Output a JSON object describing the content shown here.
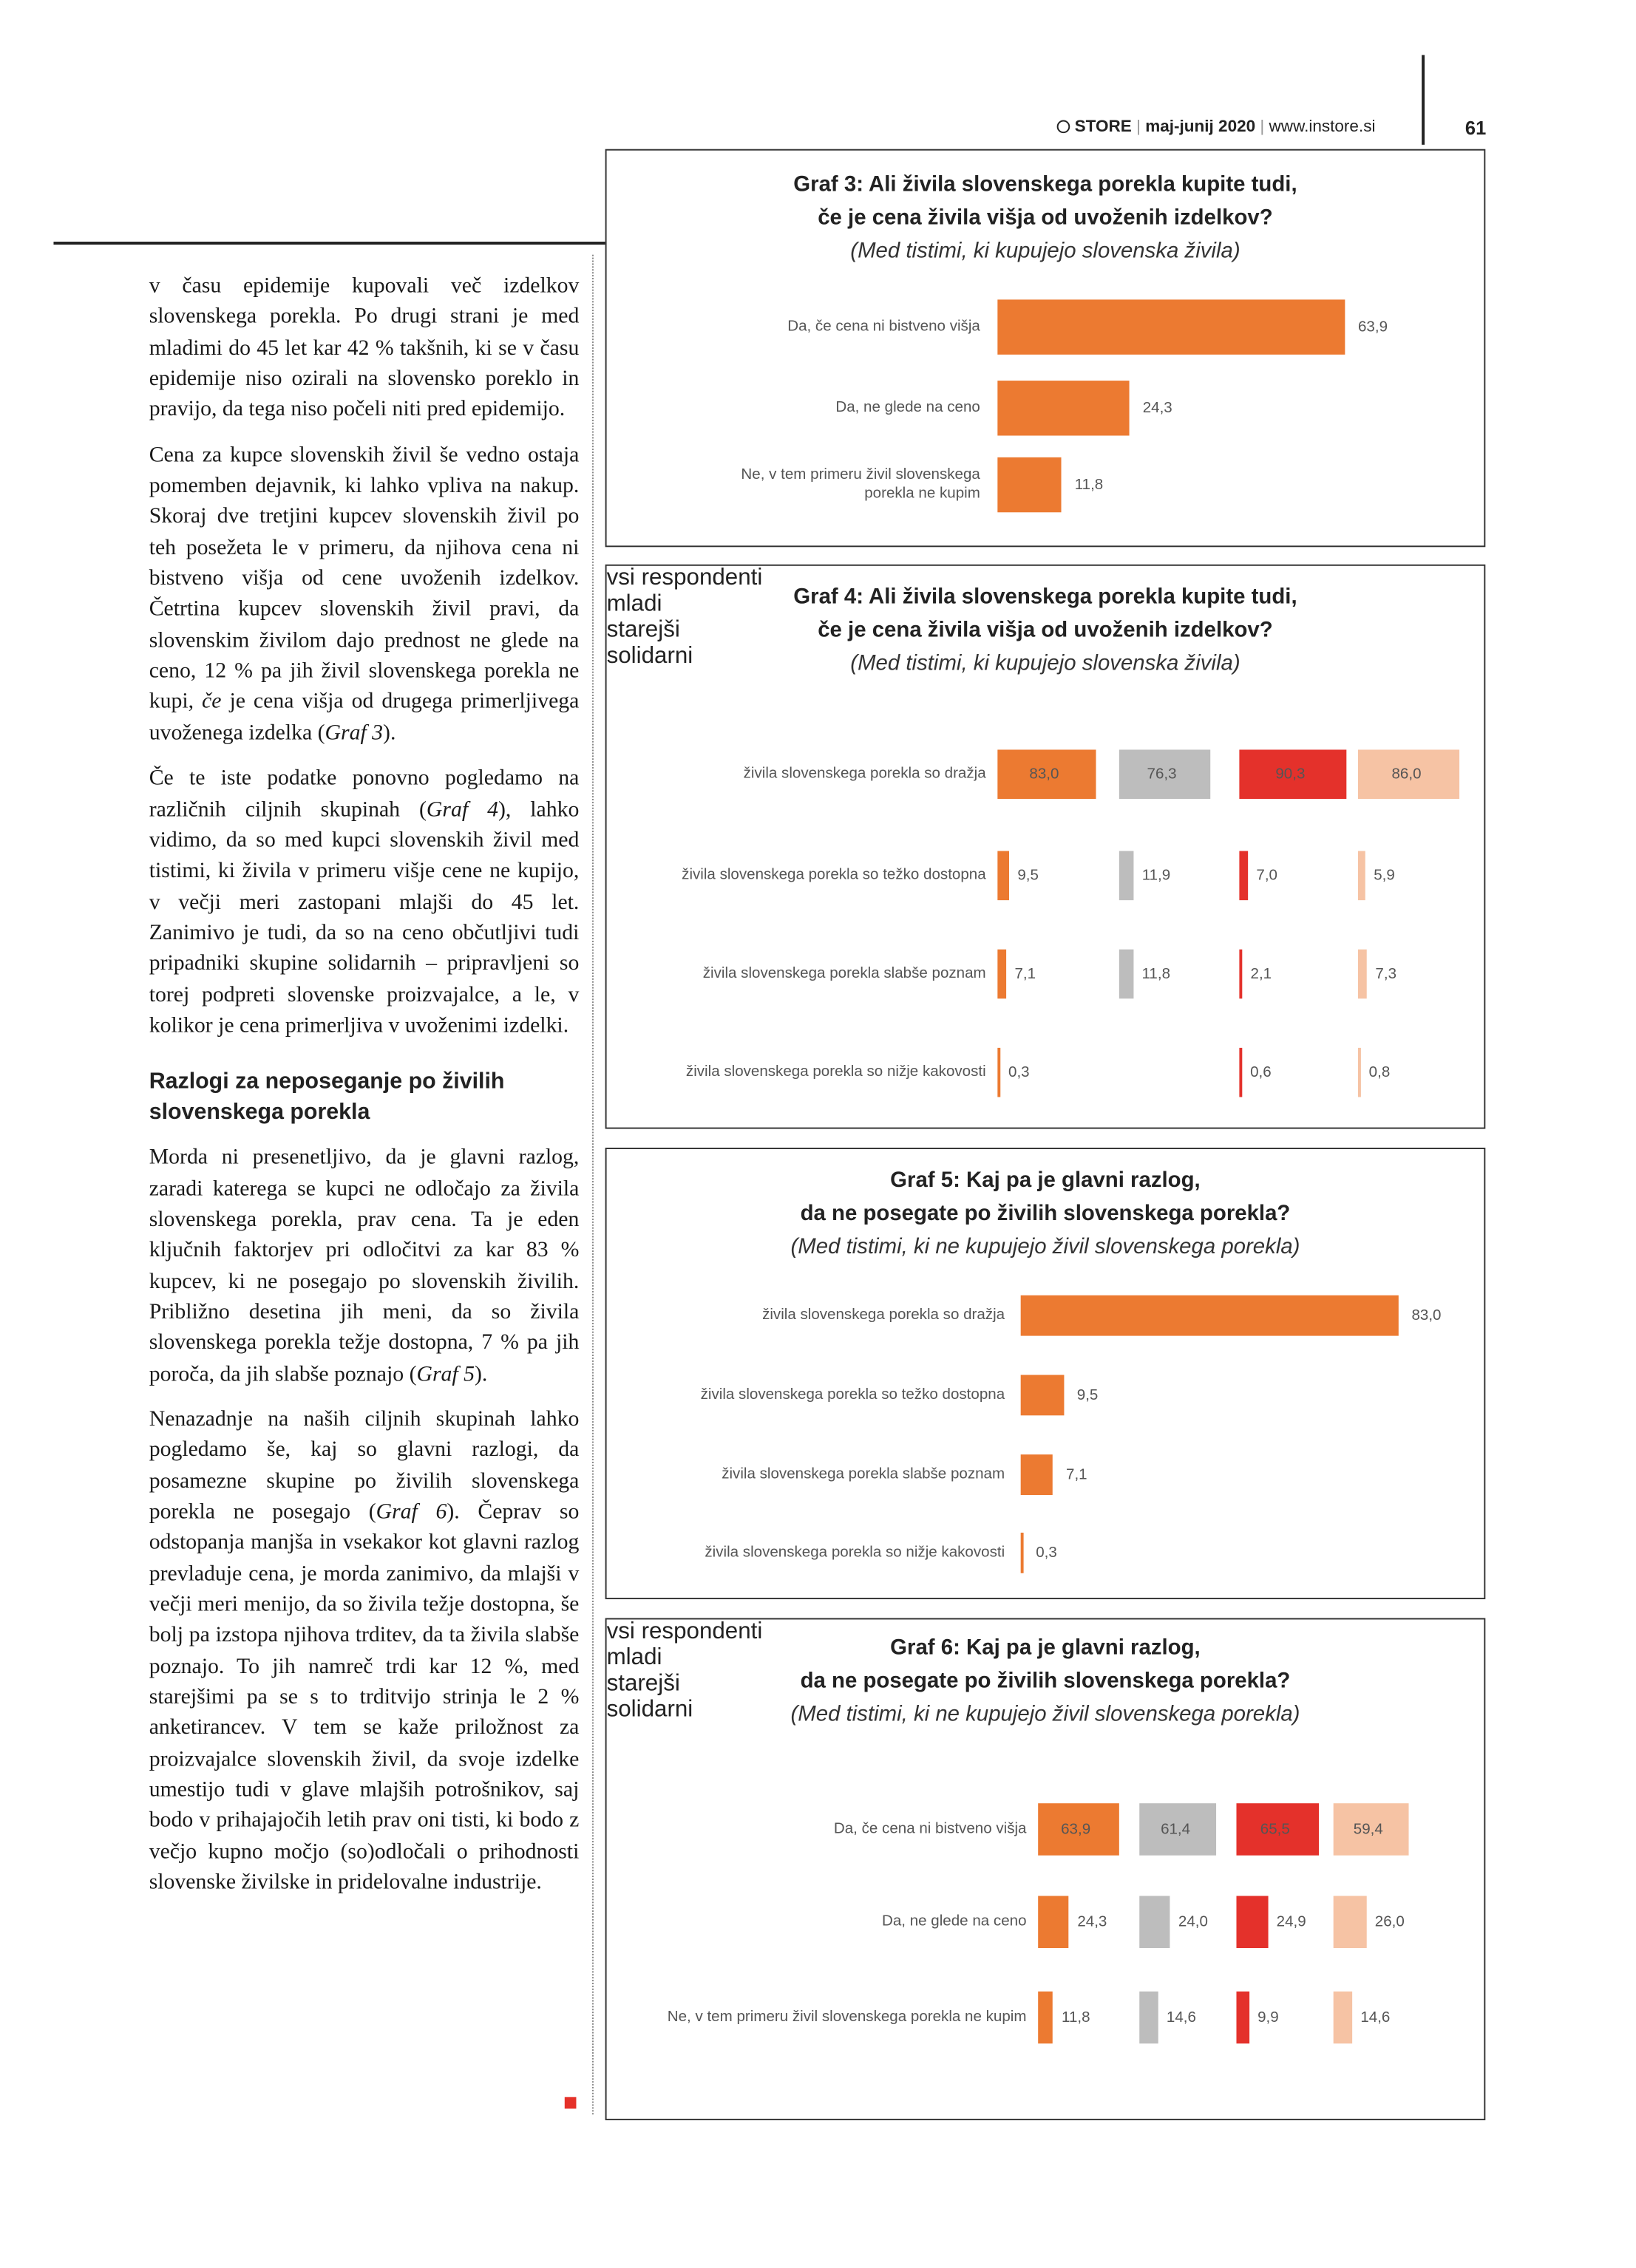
{
  "header": {
    "magazine": "STORE",
    "issue": "maj-junij 2020",
    "website": "www.instore.si",
    "page_number": "61"
  },
  "article": {
    "paragraphs": [
      [
        "v času epidemije kupovali več izdelkov slovenskega porekla. Po drugi strani je med mladimi do 45 let kar 42 % takšnih, ki se v času epidemije niso ozirali na slovensko poreklo in pravijo, da tega niso počeli niti pred epidemijo."
      ],
      [
        "Cena za kupce slovenskih živil še vedno ostaja pomemben dejavnik, ki lahko vpliva na nakup. Skoraj dve tretjini kupcev slovenskih živil po teh posežeta le v primeru, da njihova cena ni bistveno višja od cene uvoženih izdelkov. Četrtina kupcev slovenskih živil pravi, da slovenskim živilom dajo prednost ne glede na ceno, 12 % pa jih živil slovenskega porekla ne kupi, ",
        "če",
        " je cena višja od drugega primerljivega uvoženega izdelka (",
        "Graf 3",
        ")."
      ],
      [
        "Če te iste podatke ponovno pogledamo na različnih ciljnih skupinah (",
        "Graf 4",
        "), lahko vidimo, da so med kupci slovenskih živil med tistimi, ki živila v primeru višje cene ne kupijo, v večji meri zastopani mlajši do 45 let. Zanimivo je tudi, da so na ceno občutljivi tudi pripadniki skupine solidarnih – pripravljeni so torej podpreti slovenske proizvajalce, a le, v kolikor je cena primerljiva v uvoženimi izdelki."
      ]
    ],
    "heading": "Razlogi za neposeganje po živilih slovenskega porekla",
    "paragraphs_after": [
      [
        "Morda ni presenetljivo, da je glavni razlog, zaradi katerega se kupci ne odločajo za živila slovenskega porekla, prav cena. Ta je eden ključnih faktorjev pri odločitvi za kar 83 % kupcev, ki ne posegajo po slovenskih živilih. Približno desetina jih meni, da so živila slovenskega porekla težje dostopna, 7 % pa jih poroča, da jih slabše poznajo (",
        "Graf 5",
        ")."
      ],
      [
        "Nenazadnje na naših ciljnih skupinah lahko pogledamo še, kaj so glavni razlogi, da posamezne skupine po živilih slovenskega porekla ne posegajo (",
        "Graf 6",
        "). Čeprav so odstopanja manjša in vsekakor kot glavni razlog prevladuje cena, je morda zanimivo, da mlajši v večji meri menijo, da so živila težje dostopna, še bolj pa izstopa njihova trditev, da ta živila slabše poznajo. To jih namreč trdi kar 12 %, med starejšimi pa se s to trditvijo strinja le 2 % anketirancev. V tem se kaže priložnost za proizvajalce slovenskih živil, da svoje izdelke umestijo tudi v glave mlajših potrošnikov, saj bodo v prihajajočih letih prav oni tisti, ki bodo z večjo kupno močjo (so)odločali o prihodnosti slovenske živilske in pridelovalne industrije."
      ]
    ]
  },
  "chart_data": [
    {
      "type": "bar",
      "orientation": "horizontal",
      "title": [
        "Graf 3: Ali živila slovenskega porekla kupite tudi,",
        "če je cena živila višja od uvoženih izdelkov?"
      ],
      "subtitle": "(Med tistimi, ki kupujejo slovenska živila)",
      "categories": [
        "Da, če cena ni bistveno višja",
        "Da, ne glede na ceno",
        "Ne, v tem primeru živil slovenskega porekla ne kupim"
      ],
      "values": [
        63.9,
        24.3,
        11.8
      ],
      "value_labels": [
        "63,9",
        "24,3",
        "11,8"
      ],
      "color": "#ec7a31"
    },
    {
      "type": "bar",
      "orientation": "horizontal",
      "title": [
        "Graf 4: Ali živila slovenskega porekla kupite tudi,",
        "če je cena živila višja od uvoženih izdelkov?"
      ],
      "subtitle": "(Med tistimi, ki kupujejo slovenska živila)",
      "categories": [
        "živila slovenskega porekla so dražja",
        "živila slovenskega porekla so težko dostopna",
        "živila slovenskega porekla slabše poznam",
        "živila slovenskega porekla so nižje kakovosti"
      ],
      "series": [
        {
          "name": "vsi respondenti",
          "color": "#ec7a31",
          "values": [
            83.0,
            9.5,
            7.1,
            0.3
          ],
          "value_labels": [
            "83,0",
            "9,5",
            "7,1",
            "0,3"
          ]
        },
        {
          "name": "mladi",
          "color": "#bdbdbd",
          "values": [
            76.3,
            11.9,
            11.8,
            null
          ],
          "value_labels": [
            "76,3",
            "11,9",
            "11,8",
            null
          ]
        },
        {
          "name": "starejši",
          "color": "#e4312b",
          "values": [
            90.3,
            7.0,
            2.1,
            0.6
          ],
          "value_labels": [
            "90,3",
            "7,0",
            "2,1",
            "0,6"
          ]
        },
        {
          "name": "solidarni",
          "color": "#f6c3a4",
          "values": [
            86.0,
            5.9,
            7.3,
            0.8
          ],
          "value_labels": [
            "86,0",
            "5,9",
            "7,3",
            "0,8"
          ]
        }
      ]
    },
    {
      "type": "bar",
      "orientation": "horizontal",
      "title": [
        "Graf 5: Kaj pa je glavni razlog,",
        "da ne posegate po živilih slovenskega porekla?"
      ],
      "subtitle": "(Med tistimi, ki ne kupujejo živil slovenskega porekla)",
      "categories": [
        "živila slovenskega porekla so dražja",
        "živila slovenskega porekla so težko dostopna",
        "živila slovenskega porekla slabše poznam",
        "živila slovenskega porekla so nižje kakovosti"
      ],
      "values": [
        83.0,
        9.5,
        7.1,
        0.3
      ],
      "value_labels": [
        "83,0",
        "9,5",
        "7,1",
        "0,3"
      ],
      "color": "#ec7a31"
    },
    {
      "type": "bar",
      "orientation": "horizontal",
      "title": [
        "Graf 6: Kaj pa je glavni razlog,",
        "da ne posegate po živilih slovenskega porekla?"
      ],
      "subtitle": "(Med tistimi, ki ne kupujejo živil slovenskega porekla)",
      "categories": [
        "Da, če cena ni bistveno višja",
        "Da, ne glede na ceno",
        "Ne, v tem primeru živil slovenskega porekla ne kupim"
      ],
      "series": [
        {
          "name": "vsi respondenti",
          "color": "#ec7a31",
          "values": [
            63.9,
            24.3,
            11.8
          ],
          "value_labels": [
            "63,9",
            "24,3",
            "11,8"
          ]
        },
        {
          "name": "mladi",
          "color": "#bdbdbd",
          "values": [
            61.4,
            24.0,
            14.6
          ],
          "value_labels": [
            "61,4",
            "24,0",
            "14,6"
          ]
        },
        {
          "name": "starejši",
          "color": "#e4312b",
          "values": [
            65.5,
            24.9,
            9.9
          ],
          "value_labels": [
            "65,5",
            "24,9",
            "9,9"
          ]
        },
        {
          "name": "solidarni",
          "color": "#f6c3a4",
          "values": [
            59.4,
            26.0,
            14.6
          ],
          "value_labels": [
            "59,4",
            "26,0",
            "14,6"
          ]
        }
      ]
    }
  ]
}
